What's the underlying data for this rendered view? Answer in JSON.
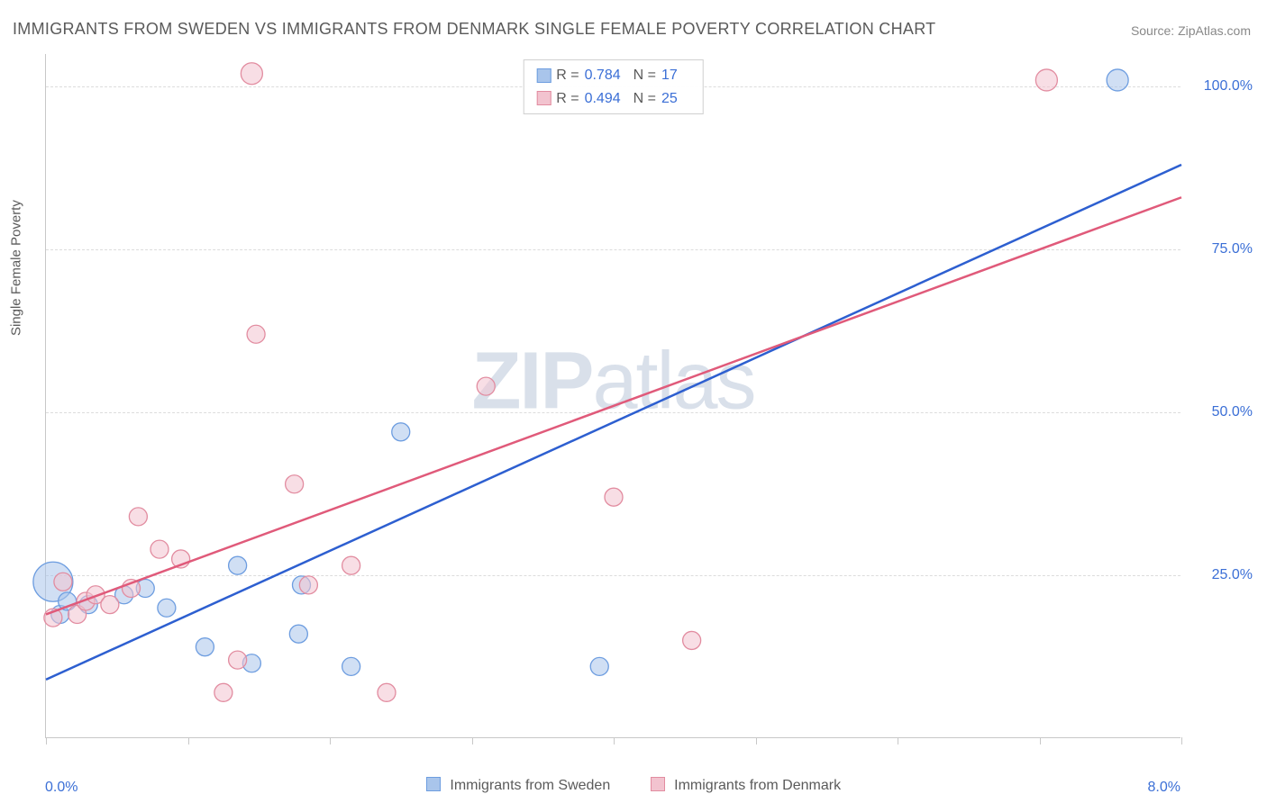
{
  "title": "IMMIGRANTS FROM SWEDEN VS IMMIGRANTS FROM DENMARK SINGLE FEMALE POVERTY CORRELATION CHART",
  "source": "Source: ZipAtlas.com",
  "y_axis_label": "Single Female Poverty",
  "watermark": {
    "bold": "ZIP",
    "light": "atlas"
  },
  "plot": {
    "xlim": [
      0.0,
      8.0
    ],
    "ylim": [
      0.0,
      105.0
    ],
    "y_gridlines": [
      25.0,
      50.0,
      75.0,
      100.0
    ],
    "y_tick_labels": [
      "25.0%",
      "50.0%",
      "75.0%",
      "100.0%"
    ],
    "x_ticks": [
      0.0,
      1.0,
      2.0,
      3.0,
      4.0,
      5.0,
      6.0,
      7.0,
      8.0
    ],
    "x_tick_labels": {
      "0": "0.0%",
      "8": "8.0%"
    },
    "grid_color": "#dcdcdc",
    "axis_color": "#c8c8c8",
    "background": "#ffffff"
  },
  "series": [
    {
      "name": "Immigrants from Sweden",
      "color_fill": "#a9c5eb",
      "color_stroke": "#6d9de0",
      "line_color": "#2d5fd0",
      "marker_radius": 10,
      "r_value": "0.784",
      "n_value": "17",
      "regression": {
        "x1": 0.0,
        "y1": 9.0,
        "x2": 8.0,
        "y2": 88.0
      },
      "points": [
        {
          "x": 0.05,
          "y": 24.0,
          "r": 22
        },
        {
          "x": 0.1,
          "y": 19.0,
          "r": 10
        },
        {
          "x": 0.15,
          "y": 21.0,
          "r": 10
        },
        {
          "x": 0.3,
          "y": 20.5,
          "r": 10
        },
        {
          "x": 0.55,
          "y": 22.0,
          "r": 10
        },
        {
          "x": 0.7,
          "y": 23.0,
          "r": 10
        },
        {
          "x": 0.85,
          "y": 20.0,
          "r": 10
        },
        {
          "x": 1.12,
          "y": 14.0,
          "r": 10
        },
        {
          "x": 1.35,
          "y": 26.5,
          "r": 10
        },
        {
          "x": 1.45,
          "y": 11.5,
          "r": 10
        },
        {
          "x": 1.78,
          "y": 16.0,
          "r": 10
        },
        {
          "x": 1.8,
          "y": 23.5,
          "r": 10
        },
        {
          "x": 2.15,
          "y": 11.0,
          "r": 10
        },
        {
          "x": 2.5,
          "y": 47.0,
          "r": 10
        },
        {
          "x": 3.9,
          "y": 11.0,
          "r": 10
        },
        {
          "x": 7.55,
          "y": 101.0,
          "r": 12
        }
      ]
    },
    {
      "name": "Immigrants from Denmark",
      "color_fill": "#f2c3cf",
      "color_stroke": "#e28ca0",
      "line_color": "#e05a7a",
      "marker_radius": 10,
      "r_value": "0.494",
      "n_value": "25",
      "regression": {
        "x1": 0.0,
        "y1": 19.0,
        "x2": 8.0,
        "y2": 83.0
      },
      "points": [
        {
          "x": 0.05,
          "y": 18.5,
          "r": 10
        },
        {
          "x": 0.12,
          "y": 24.0,
          "r": 10
        },
        {
          "x": 0.22,
          "y": 19.0,
          "r": 10
        },
        {
          "x": 0.28,
          "y": 21.0,
          "r": 10
        },
        {
          "x": 0.35,
          "y": 22.0,
          "r": 10
        },
        {
          "x": 0.45,
          "y": 20.5,
          "r": 10
        },
        {
          "x": 0.6,
          "y": 23.0,
          "r": 10
        },
        {
          "x": 0.65,
          "y": 34.0,
          "r": 10
        },
        {
          "x": 0.8,
          "y": 29.0,
          "r": 10
        },
        {
          "x": 0.95,
          "y": 27.5,
          "r": 10
        },
        {
          "x": 1.25,
          "y": 7.0,
          "r": 10
        },
        {
          "x": 1.35,
          "y": 12.0,
          "r": 10
        },
        {
          "x": 1.45,
          "y": 102.0,
          "r": 12
        },
        {
          "x": 1.48,
          "y": 62.0,
          "r": 10
        },
        {
          "x": 1.75,
          "y": 39.0,
          "r": 10
        },
        {
          "x": 1.85,
          "y": 23.5,
          "r": 10
        },
        {
          "x": 2.15,
          "y": 26.5,
          "r": 10
        },
        {
          "x": 2.4,
          "y": 7.0,
          "r": 10
        },
        {
          "x": 3.1,
          "y": 54.0,
          "r": 10
        },
        {
          "x": 4.0,
          "y": 37.0,
          "r": 10
        },
        {
          "x": 4.55,
          "y": 15.0,
          "r": 10
        },
        {
          "x": 7.05,
          "y": 101.0,
          "r": 12
        }
      ]
    }
  ],
  "stats_legend": {
    "r_label": "R =",
    "n_label": "N ="
  },
  "bottom_legend_labels": [
    "Immigrants from Sweden",
    "Immigrants from Denmark"
  ]
}
